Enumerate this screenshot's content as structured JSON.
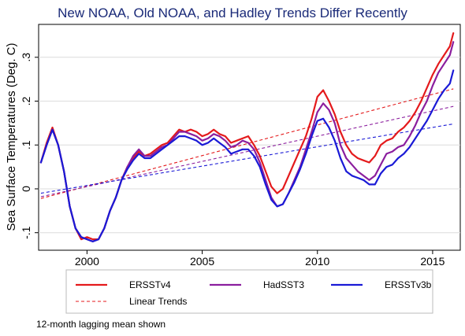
{
  "chart_data": {
    "type": "line",
    "title": "New NOAA, Old NOAA, and Hadley Trends Differ Recently",
    "ylabel": "Sea Surface Temperatures (Deg. C)",
    "xlabel": "",
    "xlim": [
      1997.9,
      2016.2
    ],
    "ylim": [
      -0.14,
      0.375
    ],
    "x_ticks": [
      2000,
      2005,
      2010,
      2015
    ],
    "x_tick_labels": [
      "2000",
      "2005",
      "2010",
      "2015"
    ],
    "y_ticks": [
      -0.1,
      0,
      0.1,
      0.2,
      0.3
    ],
    "y_tick_labels": [
      "-.1",
      "0",
      ".1",
      ".2",
      ".3"
    ],
    "grid": "horizontal",
    "legend_position": "bottom",
    "series": [
      {
        "name": "ERSSTv4",
        "color": "#e41a1c",
        "style": "solid",
        "x": [
          1998.0,
          1998.25,
          1998.5,
          1998.75,
          1999.0,
          1999.25,
          1999.5,
          1999.75,
          2000.0,
          2000.25,
          2000.5,
          2000.75,
          2001.0,
          2001.25,
          2001.5,
          2001.75,
          2002.0,
          2002.25,
          2002.5,
          2002.75,
          2003.0,
          2003.25,
          2003.5,
          2003.75,
          2004.0,
          2004.25,
          2004.5,
          2004.75,
          2005.0,
          2005.25,
          2005.5,
          2005.75,
          2006.0,
          2006.25,
          2006.5,
          2006.75,
          2007.0,
          2007.25,
          2007.5,
          2007.75,
          2008.0,
          2008.25,
          2008.5,
          2008.75,
          2009.0,
          2009.25,
          2009.5,
          2009.75,
          2010.0,
          2010.25,
          2010.5,
          2010.75,
          2011.0,
          2011.25,
          2011.5,
          2011.75,
          2012.0,
          2012.25,
          2012.5,
          2012.75,
          2013.0,
          2013.25,
          2013.5,
          2013.75,
          2014.0,
          2014.25,
          2014.5,
          2014.75,
          2015.0,
          2015.25,
          2015.5,
          2015.75,
          2015.9
        ],
        "y": [
          0.06,
          0.105,
          0.14,
          0.1,
          0.04,
          -0.04,
          -0.09,
          -0.115,
          -0.11,
          -0.115,
          -0.115,
          -0.09,
          -0.05,
          -0.02,
          0.02,
          0.05,
          0.07,
          0.085,
          0.075,
          0.08,
          0.09,
          0.1,
          0.105,
          0.12,
          0.135,
          0.13,
          0.135,
          0.13,
          0.12,
          0.125,
          0.135,
          0.125,
          0.12,
          0.105,
          0.11,
          0.115,
          0.12,
          0.1,
          0.075,
          0.04,
          0.005,
          -0.01,
          0.0,
          0.03,
          0.06,
          0.09,
          0.12,
          0.16,
          0.21,
          0.225,
          0.2,
          0.17,
          0.13,
          0.1,
          0.08,
          0.07,
          0.065,
          0.06,
          0.075,
          0.1,
          0.11,
          0.115,
          0.13,
          0.14,
          0.155,
          0.175,
          0.2,
          0.23,
          0.26,
          0.285,
          0.305,
          0.325,
          0.355
        ]
      },
      {
        "name": "HadSST3",
        "color": "#8b1e9e",
        "style": "solid",
        "x": [
          1998.0,
          1998.25,
          1998.5,
          1998.75,
          1999.0,
          1999.25,
          1999.5,
          1999.75,
          2000.0,
          2000.25,
          2000.5,
          2000.75,
          2001.0,
          2001.25,
          2001.5,
          2001.75,
          2002.0,
          2002.25,
          2002.5,
          2002.75,
          2003.0,
          2003.25,
          2003.5,
          2003.75,
          2004.0,
          2004.25,
          2004.5,
          2004.75,
          2005.0,
          2005.25,
          2005.5,
          2005.75,
          2006.0,
          2006.25,
          2006.5,
          2006.75,
          2007.0,
          2007.25,
          2007.5,
          2007.75,
          2008.0,
          2008.25,
          2008.5,
          2008.75,
          2009.0,
          2009.25,
          2009.5,
          2009.75,
          2010.0,
          2010.25,
          2010.5,
          2010.75,
          2011.0,
          2011.25,
          2011.5,
          2011.75,
          2012.0,
          2012.25,
          2012.5,
          2012.75,
          2013.0,
          2013.25,
          2013.5,
          2013.75,
          2014.0,
          2014.25,
          2014.5,
          2014.75,
          2015.0,
          2015.25,
          2015.5,
          2015.75,
          2015.9
        ],
        "y": [
          0.06,
          0.1,
          0.135,
          0.1,
          0.04,
          -0.04,
          -0.09,
          -0.11,
          -0.115,
          -0.12,
          -0.115,
          -0.09,
          -0.05,
          -0.02,
          0.02,
          0.05,
          0.075,
          0.09,
          0.075,
          0.075,
          0.085,
          0.095,
          0.1,
          0.115,
          0.13,
          0.13,
          0.125,
          0.12,
          0.11,
          0.115,
          0.125,
          0.12,
          0.11,
          0.095,
          0.1,
          0.11,
          0.105,
          0.09,
          0.06,
          0.02,
          -0.02,
          -0.04,
          -0.035,
          -0.01,
          0.02,
          0.05,
          0.09,
          0.13,
          0.175,
          0.195,
          0.18,
          0.15,
          0.1,
          0.07,
          0.055,
          0.04,
          0.03,
          0.02,
          0.03,
          0.055,
          0.08,
          0.085,
          0.095,
          0.1,
          0.12,
          0.145,
          0.175,
          0.2,
          0.235,
          0.265,
          0.285,
          0.305,
          0.335
        ]
      },
      {
        "name": "ERSSTv3b",
        "color": "#1a1ad6",
        "style": "solid",
        "x": [
          1998.0,
          1998.25,
          1998.5,
          1998.75,
          1999.0,
          1999.25,
          1999.5,
          1999.75,
          2000.0,
          2000.25,
          2000.5,
          2000.75,
          2001.0,
          2001.25,
          2001.5,
          2001.75,
          2002.0,
          2002.25,
          2002.5,
          2002.75,
          2003.0,
          2003.25,
          2003.5,
          2003.75,
          2004.0,
          2004.25,
          2004.5,
          2004.75,
          2005.0,
          2005.25,
          2005.5,
          2005.75,
          2006.0,
          2006.25,
          2006.5,
          2006.75,
          2007.0,
          2007.25,
          2007.5,
          2007.75,
          2008.0,
          2008.25,
          2008.5,
          2008.75,
          2009.0,
          2009.25,
          2009.5,
          2009.75,
          2010.0,
          2010.25,
          2010.5,
          2010.75,
          2011.0,
          2011.25,
          2011.5,
          2011.75,
          2012.0,
          2012.25,
          2012.5,
          2012.75,
          2013.0,
          2013.25,
          2013.5,
          2013.75,
          2014.0,
          2014.25,
          2014.5,
          2014.75,
          2015.0,
          2015.25,
          2015.5,
          2015.75,
          2015.9
        ],
        "y": [
          0.06,
          0.1,
          0.135,
          0.1,
          0.04,
          -0.04,
          -0.09,
          -0.11,
          -0.115,
          -0.12,
          -0.115,
          -0.09,
          -0.05,
          -0.02,
          0.02,
          0.045,
          0.065,
          0.08,
          0.07,
          0.07,
          0.08,
          0.09,
          0.1,
          0.11,
          0.12,
          0.12,
          0.115,
          0.11,
          0.1,
          0.105,
          0.115,
          0.105,
          0.095,
          0.08,
          0.085,
          0.09,
          0.09,
          0.075,
          0.05,
          0.01,
          -0.025,
          -0.04,
          -0.035,
          -0.01,
          0.015,
          0.045,
          0.08,
          0.12,
          0.155,
          0.16,
          0.14,
          0.11,
          0.07,
          0.04,
          0.03,
          0.025,
          0.02,
          0.01,
          0.01,
          0.035,
          0.05,
          0.055,
          0.07,
          0.08,
          0.095,
          0.115,
          0.135,
          0.155,
          0.18,
          0.205,
          0.225,
          0.24,
          0.27
        ]
      }
    ],
    "trend_lines": [
      {
        "name": "Linear Trends",
        "series": "ERSSTv4",
        "color": "#e41a1c",
        "style": "dashed",
        "x": [
          1998.0,
          2015.9
        ],
        "y": [
          -0.022,
          0.228
        ]
      },
      {
        "name": "Linear Trends",
        "series": "HadSST3",
        "color": "#8b1e9e",
        "style": "dashed",
        "x": [
          1998.0,
          2015.9
        ],
        "y": [
          -0.018,
          0.188
        ]
      },
      {
        "name": "Linear Trends",
        "series": "ERSSTv3b",
        "color": "#1a1ad6",
        "style": "dashed",
        "x": [
          1998.0,
          2015.9
        ],
        "y": [
          -0.01,
          0.148
        ]
      }
    ],
    "legend": [
      {
        "label": "ERSSTv4",
        "color": "#e41a1c",
        "style": "solid"
      },
      {
        "label": "HadSST3",
        "color": "#8b1e9e",
        "style": "solid"
      },
      {
        "label": "ERSSTv3b",
        "color": "#1a1ad6",
        "style": "solid"
      },
      {
        "label": "Linear Trends",
        "color": "#e41a1c",
        "style": "dashed"
      }
    ],
    "note": "12-month lagging mean shown"
  }
}
